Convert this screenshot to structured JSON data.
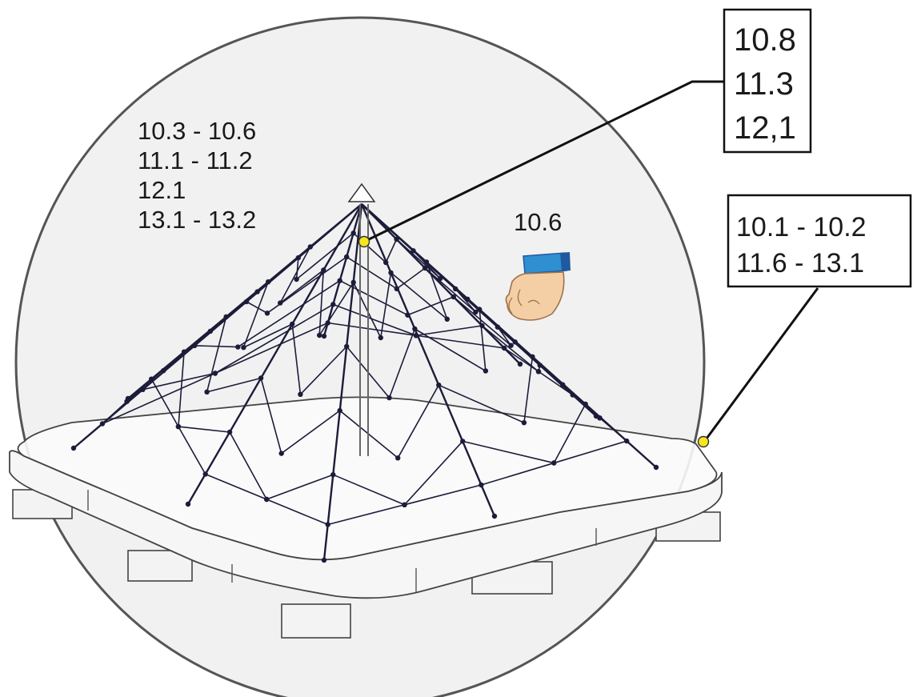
{
  "callouts": {
    "left_group": [
      "10.3 - 10.6",
      "11.1 - 11.2",
      "12.1",
      "13.1 - 13.2"
    ],
    "top_box": [
      "10.8",
      "11.3",
      "12,1"
    ],
    "hand": "10.6",
    "right_box": [
      "10.1 - 10.2",
      "11.6 - 13.1"
    ]
  },
  "colors": {
    "sphere_fill": "#e6e6e6",
    "sphere_stroke": "#555555",
    "rope": "#1c1c3a",
    "marker": "#f5e61e",
    "sleeve": "#2f8fd0",
    "cuff": "#1f5aa0",
    "skin": "#f4cfa6"
  },
  "icons": {
    "hand": "pointing-hand-icon",
    "marker": "yellow-dot-marker"
  }
}
